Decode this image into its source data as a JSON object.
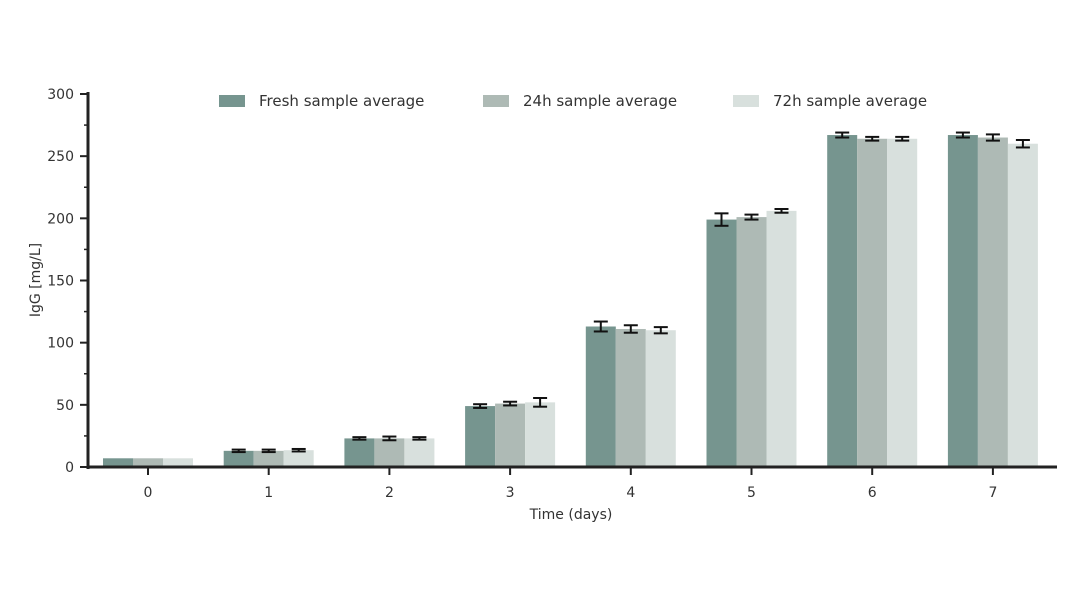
{
  "chart_data": {
    "type": "bar",
    "title": "",
    "xlabel": "Time (days)",
    "ylabel": "IgG [mg/L]",
    "categories": [
      "0",
      "1",
      "2",
      "3",
      "4",
      "5",
      "6",
      "7"
    ],
    "ylim": [
      0,
      300
    ],
    "yticks": [
      "0",
      "50",
      "100",
      "150",
      "200",
      "250",
      "300"
    ],
    "grid": false,
    "legend_position": "top",
    "series": [
      {
        "name": "Fresh sample average",
        "color": "#76958f",
        "values": [
          7,
          13,
          23,
          49,
          113,
          199,
          267,
          267
        ],
        "errors": [
          0,
          1,
          1,
          1.5,
          4,
          5,
          2,
          2
        ]
      },
      {
        "name": "24h sample average",
        "color": "#aebab5",
        "values": [
          7,
          13,
          23,
          51,
          111,
          201,
          264,
          265
        ],
        "errors": [
          0,
          1,
          1.5,
          1.5,
          3,
          2,
          1.5,
          2.5
        ]
      },
      {
        "name": "72h sample average",
        "color": "#d8e0dd",
        "values": [
          7,
          13.5,
          23,
          52,
          110,
          206,
          264,
          260
        ],
        "errors": [
          0,
          1,
          1,
          3.5,
          2.5,
          1.5,
          1.5,
          3
        ]
      }
    ]
  }
}
